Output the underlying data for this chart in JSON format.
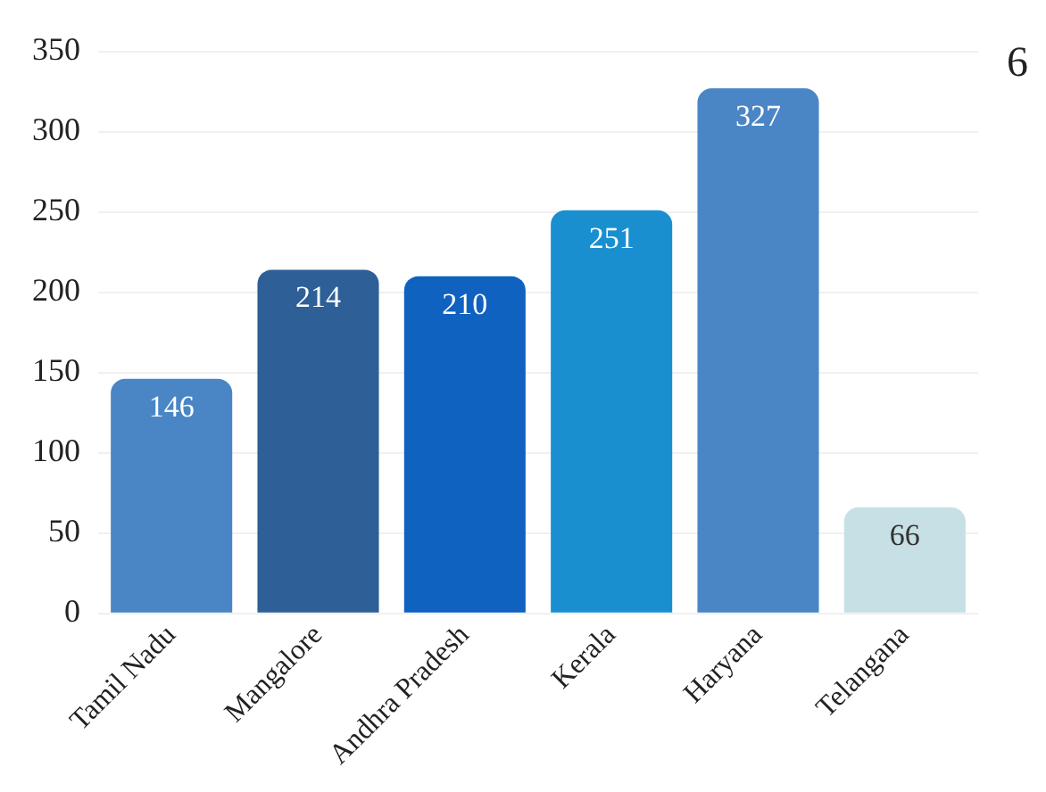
{
  "chart_data": {
    "type": "bar",
    "categories": [
      "Tamil Nadu",
      "Mangalore",
      "Andhra Pradesh",
      "Kerala",
      "Haryana",
      "Telangana"
    ],
    "values": [
      146,
      214,
      210,
      251,
      327,
      66
    ],
    "colors": [
      "#4a86c5",
      "#2e5f96",
      "#0f62c0",
      "#1a8fd0",
      "#4a86c5",
      "#c7e0e5"
    ],
    "ylim": [
      0,
      350
    ],
    "yticks": [
      0,
      50,
      100,
      150,
      200,
      250,
      300,
      350
    ],
    "grid": "y",
    "data_labels": true,
    "legend": false,
    "annotations": [
      "6"
    ]
  }
}
